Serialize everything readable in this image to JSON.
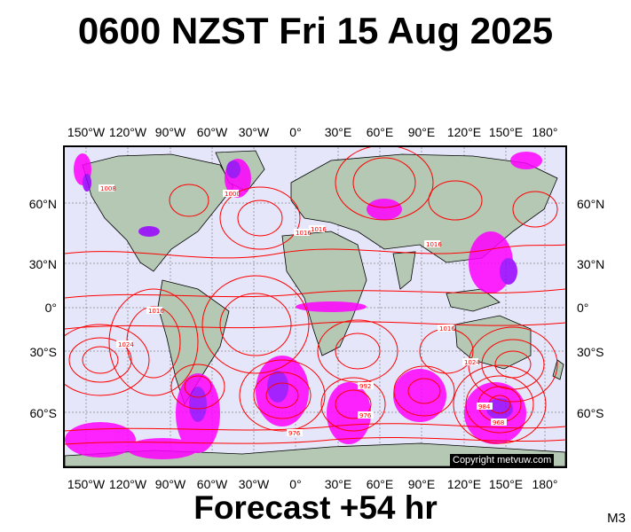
{
  "title": "0600 NZST Fri 15 Aug 2025",
  "footer": "Forecast +54 hr",
  "model_label": "M3",
  "copyright": "Copyright metvuw.com",
  "lon_labels": [
    "150°W",
    "120°W",
    "90°W",
    "60°W",
    "30°W",
    "0°",
    "30°E",
    "60°E",
    "90°E",
    "120°E",
    "150°E",
    "180°"
  ],
  "lat_labels": [
    "60°N",
    "30°N",
    "0°",
    "30°S",
    "60°S"
  ],
  "pressure_labels": [
    "1016",
    "1008",
    "1000",
    "1024",
    "992",
    "984",
    "976",
    "968"
  ],
  "colors": {
    "isobar": "#ff0000",
    "ocean": "#e6e6fa",
    "land": "#b4c8b4",
    "rain": "#ff00ff",
    "rain_heavy": "#9900ff"
  }
}
